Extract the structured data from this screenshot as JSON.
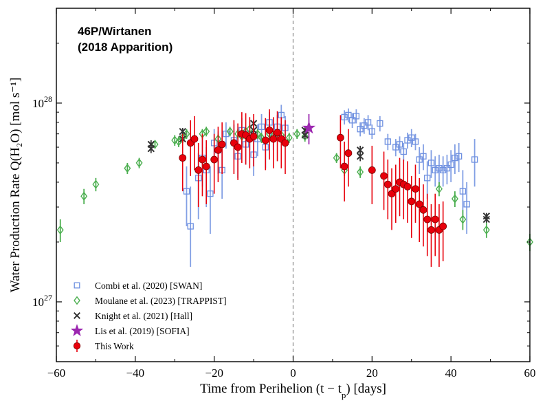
{
  "chart_data": {
    "type": "scatter",
    "title_lines": [
      "46P/Wirtanen",
      "(2018 Apparition)"
    ],
    "xlabel": "Time from Perihelion (t − t",
    "xlabel_sub": "p",
    "xlabel_tail": ") [days]",
    "ylabel": "Water Production Rate Q(H₂O) [mol s⁻¹]",
    "xlim": [
      -60,
      60
    ],
    "ylim": [
      5e+26,
      3e+28
    ],
    "yscale": "log",
    "x_ticks": [
      -60,
      -40,
      -20,
      0,
      20,
      40,
      60
    ],
    "x_tick_labels": [
      "−60",
      "−40",
      "−20",
      "0",
      "20",
      "40",
      "60"
    ],
    "y_ticks": [
      1e+27,
      1e+28
    ],
    "y_tick_bases": [
      "10",
      "10"
    ],
    "y_tick_exps": [
      "27",
      "28"
    ],
    "perihelion_line_x": 0,
    "legend_position": "bottom-left",
    "series": [
      {
        "name": "Combi et al. (2020) [SWAN]",
        "marker": "square-open",
        "color": "#6d8fe0",
        "points": [
          [
            -27,
            3.6e+27,
            2.4e+27,
            4.8e+27
          ],
          [
            -26,
            2.4e+27,
            1.5e+27,
            3.8e+27
          ],
          [
            -24,
            4.2e+27,
            2.6e+27,
            5.6e+27
          ],
          [
            -23,
            5.3e+27,
            3.8e+27,
            6.7e+27
          ],
          [
            -22,
            4.6e+27,
            3e+27,
            6e+27
          ],
          [
            -21,
            3.5e+27,
            2.2e+27,
            4.8e+27
          ],
          [
            -20,
            6.3e+27,
            5.1e+27,
            7.4e+27
          ],
          [
            -19,
            5.8e+27,
            4.4e+27,
            7.2e+27
          ],
          [
            -18,
            4.6e+27,
            3.3e+27,
            5.9e+27
          ],
          [
            -17,
            7e+27,
            5.9e+27,
            8e+27
          ],
          [
            -15,
            6.5e+27,
            5.2e+27,
            7.8e+27
          ],
          [
            -14,
            5.4e+27,
            4.2e+27,
            6.6e+27
          ],
          [
            -13,
            7.3e+27,
            6.2e+27,
            8.4e+27
          ],
          [
            -12,
            6.2e+27,
            4.9e+27,
            7.5e+27
          ],
          [
            -11,
            7e+27,
            5.8e+27,
            8.2e+27
          ],
          [
            -10,
            5.5e+27,
            4.3e+27,
            6.7e+27
          ],
          [
            -9,
            6.6e+27,
            5.4e+27,
            7.8e+27
          ],
          [
            -8,
            7.6e+27,
            6.4e+27,
            8.8e+27
          ],
          [
            -7,
            6e+27,
            4.7e+27,
            7.3e+27
          ],
          [
            -6,
            8e+27,
            6.9e+27,
            9e+27
          ],
          [
            -5,
            7e+27,
            5.8e+27,
            8.2e+27
          ],
          [
            -4,
            7.6e+27,
            6.5e+27,
            8.7e+27
          ],
          [
            -3,
            8.7e+27,
            7.6e+27,
            9.8e+27
          ],
          [
            -2,
            7.5e+27,
            6.4e+27,
            8.6e+27
          ],
          [
            13,
            8.5e+27,
            7.8e+27,
            9.2e+27
          ],
          [
            14,
            8.7e+27,
            8e+27,
            9.4e+27
          ],
          [
            15,
            8.2e+27,
            7.5e+27,
            8.9e+27
          ],
          [
            16,
            8.6e+27,
            7.9e+27,
            9.3e+27
          ],
          [
            17,
            7.4e+27,
            6.8e+27,
            8e+27
          ],
          [
            18,
            7.7e+27,
            7e+27,
            8.4e+27
          ],
          [
            19,
            8e+27,
            7.3e+27,
            8.7e+27
          ],
          [
            20,
            7.2e+27,
            6.6e+27,
            7.8e+27
          ],
          [
            22,
            7.9e+27,
            7.2e+27,
            8.6e+27
          ],
          [
            24,
            6.4e+27,
            5.8e+27,
            7e+27
          ],
          [
            26,
            6e+27,
            5.4e+27,
            6.6e+27
          ],
          [
            27,
            6.2e+27,
            5.6e+27,
            6.8e+27
          ],
          [
            28,
            5.7e+27,
            5.1e+27,
            6.3e+27
          ],
          [
            29,
            6.5e+27,
            5.9e+27,
            7.1e+27
          ],
          [
            30,
            6.7e+27,
            6e+27,
            7.4e+27
          ],
          [
            31,
            6.4e+27,
            5.8e+27,
            7e+27
          ],
          [
            32,
            5.2e+27,
            4.4e+27,
            6e+27
          ],
          [
            33,
            5.4e+27,
            4.6e+27,
            6.2e+27
          ],
          [
            34,
            4.2e+27,
            3.3e+27,
            5.1e+27
          ],
          [
            35,
            5e+27,
            4.2e+27,
            5.8e+27
          ],
          [
            36,
            4.6e+27,
            3.8e+27,
            5.4e+27
          ],
          [
            37,
            4.7e+27,
            3.9e+27,
            5.5e+27
          ],
          [
            38,
            4.6e+27,
            3.8e+27,
            5.4e+27
          ],
          [
            39,
            4.7e+27,
            3.9e+27,
            5.5e+27
          ],
          [
            40,
            4.9e+27,
            4e+27,
            5.8e+27
          ],
          [
            41,
            5.3e+27,
            4.4e+27,
            6.2e+27
          ],
          [
            42,
            5.4e+27,
            4.5e+27,
            6.3e+27
          ],
          [
            43,
            3.6e+27,
            2.6e+27,
            4.6e+27
          ],
          [
            44,
            3.1e+27,
            2.2e+27,
            4e+27
          ],
          [
            46,
            5.2e+27,
            3.8e+27,
            6.6e+27
          ]
        ]
      },
      {
        "name": "Moulane et al. (2023) [TRAPPIST]",
        "marker": "diamond-open",
        "color": "#4caf50",
        "points": [
          [
            -59,
            2.3e+27,
            2e+27,
            2.6e+27
          ],
          [
            -53,
            3.4e+27,
            3.1e+27,
            3.7e+27
          ],
          [
            -50,
            3.9e+27,
            3.6e+27,
            4.2e+27
          ],
          [
            -42,
            4.7e+27,
            4.4e+27,
            5e+27
          ],
          [
            -39,
            5e+27,
            4.7e+27,
            5.3e+27
          ],
          [
            -35,
            6.2e+27,
            5.9e+27,
            6.5e+27
          ],
          [
            -30,
            6.5e+27,
            6.1e+27,
            6.9e+27
          ],
          [
            -29,
            6.4e+27,
            6e+27,
            6.8e+27
          ],
          [
            -28,
            6.7e+27,
            6.3e+27,
            7.1e+27
          ],
          [
            -27,
            7e+27,
            6.6e+27,
            7.4e+27
          ],
          [
            -23,
            7e+27,
            6.6e+27,
            7.4e+27
          ],
          [
            -22,
            7.2e+27,
            6.8e+27,
            7.6e+27
          ],
          [
            -19,
            6.6e+27,
            6.2e+27,
            7e+27
          ],
          [
            -16,
            7.2e+27,
            6.8e+27,
            7.6e+27
          ],
          [
            -14,
            7e+27,
            6.6e+27,
            7.4e+27
          ],
          [
            -13,
            6.8e+27,
            6.4e+27,
            7.2e+27
          ],
          [
            -12,
            7.2e+27,
            6.8e+27,
            7.6e+27
          ],
          [
            -11,
            7.4e+27,
            7e+27,
            7.8e+27
          ],
          [
            -9,
            7e+27,
            6.6e+27,
            7.4e+27
          ],
          [
            -8,
            6.7e+27,
            6.3e+27,
            7.1e+27
          ],
          [
            -6,
            7e+27,
            6.6e+27,
            7.4e+27
          ],
          [
            -5,
            6.8e+27,
            6.4e+27,
            7.2e+27
          ],
          [
            -3,
            6.9e+27,
            6.5e+27,
            7.3e+27
          ],
          [
            -1,
            6.7e+27,
            6.3e+27,
            7.1e+27
          ],
          [
            1,
            7e+27,
            6.6e+27,
            7.4e+27
          ],
          [
            3,
            6.8e+27,
            6.4e+27,
            7.2e+27
          ],
          [
            11,
            5.3e+27,
            5e+27,
            5.6e+27
          ],
          [
            13,
            4.6e+27,
            4.3e+27,
            4.9e+27
          ],
          [
            17,
            4.5e+27,
            4.2e+27,
            4.8e+27
          ],
          [
            37,
            3.7e+27,
            3.4e+27,
            4e+27
          ],
          [
            41,
            3.3e+27,
            3e+27,
            3.6e+27
          ],
          [
            43,
            2.6e+27,
            2.3e+27,
            2.9e+27
          ],
          [
            49,
            2.3e+27,
            2.1e+27,
            2.5e+27
          ],
          [
            60,
            2e+27,
            1.8e+27,
            2.2e+27
          ]
        ]
      },
      {
        "name": "Knight et al. (2021) [Hall]",
        "marker": "x",
        "color": "#333333",
        "points": [
          [
            -36,
            6.2e+27,
            5.9e+27,
            6.5e+27
          ],
          [
            -36,
            5.9e+27,
            5.6e+27,
            6.2e+27
          ],
          [
            -28,
            7.2e+27,
            6.9e+27,
            7.5e+27
          ],
          [
            -28,
            6.6e+27,
            6.3e+27,
            6.9e+27
          ],
          [
            -10,
            7.9e+27,
            7.6e+27,
            8.2e+27
          ],
          [
            -10,
            7.3e+27,
            7e+27,
            7.6e+27
          ],
          [
            3,
            6.9e+27,
            6.6e+27,
            7.2e+27
          ],
          [
            3,
            7.3e+27,
            7e+27,
            7.6e+27
          ],
          [
            17,
            5.8e+27,
            5.5e+27,
            6.1e+27
          ],
          [
            17,
            5.4e+27,
            5.1e+27,
            5.7e+27
          ],
          [
            49,
            2.7e+27,
            2.6e+27,
            2.8e+27
          ],
          [
            49,
            2.6e+27,
            2.5e+27,
            2.7e+27
          ]
        ]
      },
      {
        "name": "Lis et al. (2019) [SOFIA]",
        "marker": "star",
        "color": "#9c27b0",
        "points": [
          [
            4,
            7.5e+27,
            6.2e+27,
            8.8e+27
          ]
        ]
      },
      {
        "name": "This Work",
        "marker": "circle",
        "color": "#e8000b",
        "points": [
          [
            -28,
            5.3e+27,
            3.6e+27,
            7e+27
          ],
          [
            -26,
            6.3e+27,
            4.3e+27,
            8.2e+27
          ],
          [
            -25,
            6.6e+27,
            4.6e+27,
            8.6e+27
          ],
          [
            -24,
            4.6e+27,
            3e+27,
            6.3e+27
          ],
          [
            -23,
            5.2e+27,
            3.4e+27,
            7e+27
          ],
          [
            -22,
            4.8e+27,
            3.1e+27,
            6.5e+27
          ],
          [
            -20,
            5.2e+27,
            3.5e+27,
            7e+27
          ],
          [
            -19,
            5.8e+27,
            4e+27,
            7.6e+27
          ],
          [
            -18,
            6.2e+27,
            4.4e+27,
            8e+27
          ],
          [
            -15,
            6.3e+27,
            4.4e+27,
            8.2e+27
          ],
          [
            -14,
            6e+27,
            4.1e+27,
            7.9e+27
          ],
          [
            -13,
            7e+27,
            5e+27,
            9e+27
          ],
          [
            -12,
            6.9e+27,
            4.9e+27,
            8.9e+27
          ],
          [
            -11,
            6.6e+27,
            4.7e+27,
            8.5e+27
          ],
          [
            -10,
            6.8e+27,
            4.8e+27,
            8.8e+27
          ],
          [
            -7,
            6.5e+27,
            4.6e+27,
            8.4e+27
          ],
          [
            -6,
            7.3e+27,
            5.2e+27,
            9.3e+27
          ],
          [
            -5,
            6.6e+27,
            4.7e+27,
            8.5e+27
          ],
          [
            -4,
            7.1e+27,
            5.1e+27,
            9.1e+27
          ],
          [
            -3,
            6.6e+27,
            4.7e+27,
            8.5e+27
          ],
          [
            -2,
            6.3e+27,
            4.4e+27,
            8.2e+27
          ],
          [
            12,
            6.7e+27,
            4.7e+27,
            8.7e+27
          ],
          [
            13,
            4.8e+27,
            3.2e+27,
            6.4e+27
          ],
          [
            14,
            5.6e+27,
            3.8e+27,
            7.4e+27
          ],
          [
            20,
            4.6e+27,
            3.1e+27,
            6.1e+27
          ],
          [
            23,
            4.3e+27,
            2.9e+27,
            5.7e+27
          ],
          [
            24,
            3.9e+27,
            2.6e+27,
            5.2e+27
          ],
          [
            25,
            3.5e+27,
            2.3e+27,
            4.7e+27
          ],
          [
            26,
            3.7e+27,
            2.5e+27,
            4.9e+27
          ],
          [
            27,
            4e+27,
            2.7e+27,
            5.3e+27
          ],
          [
            28,
            3.9e+27,
            2.6e+27,
            5.2e+27
          ],
          [
            29,
            3.8e+27,
            2.5e+27,
            5.1e+27
          ],
          [
            30,
            3.2e+27,
            2.1e+27,
            4.3e+27
          ],
          [
            31,
            3.7e+27,
            2.5e+27,
            4.9e+27
          ],
          [
            32,
            3.1e+27,
            2e+27,
            4.2e+27
          ],
          [
            33,
            2.9e+27,
            1.9e+27,
            3.9e+27
          ],
          [
            34,
            2.6e+27,
            1.7e+27,
            3.5e+27
          ],
          [
            35,
            2.3e+27,
            1.5e+27,
            3.1e+27
          ],
          [
            36,
            2.6e+27,
            1.7e+27,
            3.5e+27
          ],
          [
            37,
            2.3e+27,
            1.5e+27,
            3.1e+27
          ],
          [
            38,
            2.4e+27,
            1.6e+27,
            3.2e+27
          ]
        ]
      }
    ]
  }
}
